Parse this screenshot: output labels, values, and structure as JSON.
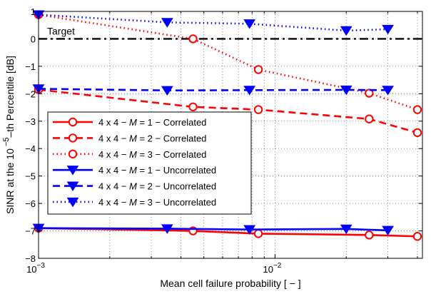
{
  "chart_data": {
    "type": "line",
    "title": "",
    "xlabel": "Mean cell failure probability [ − ]",
    "ylabel": "SINR at the 10",
    "ylabel_sup": " −5",
    "ylabel_rest": "–th Percentile [dB]",
    "xscale": "log",
    "xlim": [
      0.001,
      0.042
    ],
    "ylim": [
      -8,
      1
    ],
    "x_ticks": [
      {
        "value": 0.001,
        "base": "10",
        "exp": "−3"
      },
      {
        "value": 0.01,
        "base": "10",
        "exp": "−2"
      }
    ],
    "y_ticks": [
      1,
      0,
      -1,
      -2,
      -3,
      -4,
      -5,
      -6,
      -7,
      -8
    ],
    "y_tick_labels": [
      "1",
      "0",
      "−1",
      "−2",
      "−3",
      "−4",
      "−5",
      "−6",
      "−7",
      "−8"
    ],
    "grid": true,
    "legend_position": "lower-left",
    "target": {
      "label": "Target",
      "y": 0
    },
    "series": [
      {
        "name_prefix": "4 x 4 − ",
        "name_var": "M",
        "name_rest": " = 1 − Correlated",
        "color": "#ff0000",
        "dash": "solid",
        "marker": "circle",
        "x": [
          0.001,
          0.0045,
          0.0085,
          0.025,
          0.04
        ],
        "y": [
          -6.9,
          -7.0,
          -7.1,
          -7.15,
          -7.2
        ]
      },
      {
        "name_prefix": "4 x 4 − ",
        "name_var": "M",
        "name_rest": " = 2 − Correlated",
        "color": "#ff0000",
        "dash": "dashed",
        "marker": "circle",
        "x": [
          0.001,
          0.0045,
          0.0085,
          0.025,
          0.04
        ],
        "y": [
          -1.85,
          -2.48,
          -2.58,
          -2.92,
          -3.42
        ]
      },
      {
        "name_prefix": "4 x 4 − ",
        "name_var": "M",
        "name_rest": " = 3 − Correlated",
        "color": "#ff0000",
        "dash": "dotted",
        "marker": "circle",
        "x": [
          0.001,
          0.0045,
          0.0085,
          0.025,
          0.04
        ],
        "y": [
          0.88,
          0.0,
          -1.12,
          -1.98,
          -2.58
        ]
      },
      {
        "name_prefix": "4 x 4 − ",
        "name_var": "M",
        "name_rest": " = 1 − Uncorrelated",
        "color": "#0000ff",
        "dash": "solid",
        "marker": "triangle-down",
        "x": [
          0.001,
          0.0035,
          0.0078,
          0.02,
          0.03
        ],
        "y": [
          -6.9,
          -6.92,
          -6.95,
          -6.93,
          -6.98
        ]
      },
      {
        "name_prefix": "4 x 4 − ",
        "name_var": "M",
        "name_rest": " = 2 − Uncorrelated",
        "color": "#0000ff",
        "dash": "dashed",
        "marker": "triangle-down",
        "x": [
          0.001,
          0.0035,
          0.0078,
          0.02,
          0.03
        ],
        "y": [
          -1.82,
          -1.88,
          -1.87,
          -1.86,
          -1.87
        ]
      },
      {
        "name_prefix": "4 x 4 − ",
        "name_var": "M",
        "name_rest": " = 3 − Uncorrelated",
        "color": "#0000ff",
        "dash": "dotted",
        "marker": "triangle-down",
        "x": [
          0.001,
          0.0035,
          0.0078,
          0.02,
          0.03
        ],
        "y": [
          0.88,
          0.6,
          0.55,
          0.3,
          0.35
        ]
      }
    ]
  }
}
